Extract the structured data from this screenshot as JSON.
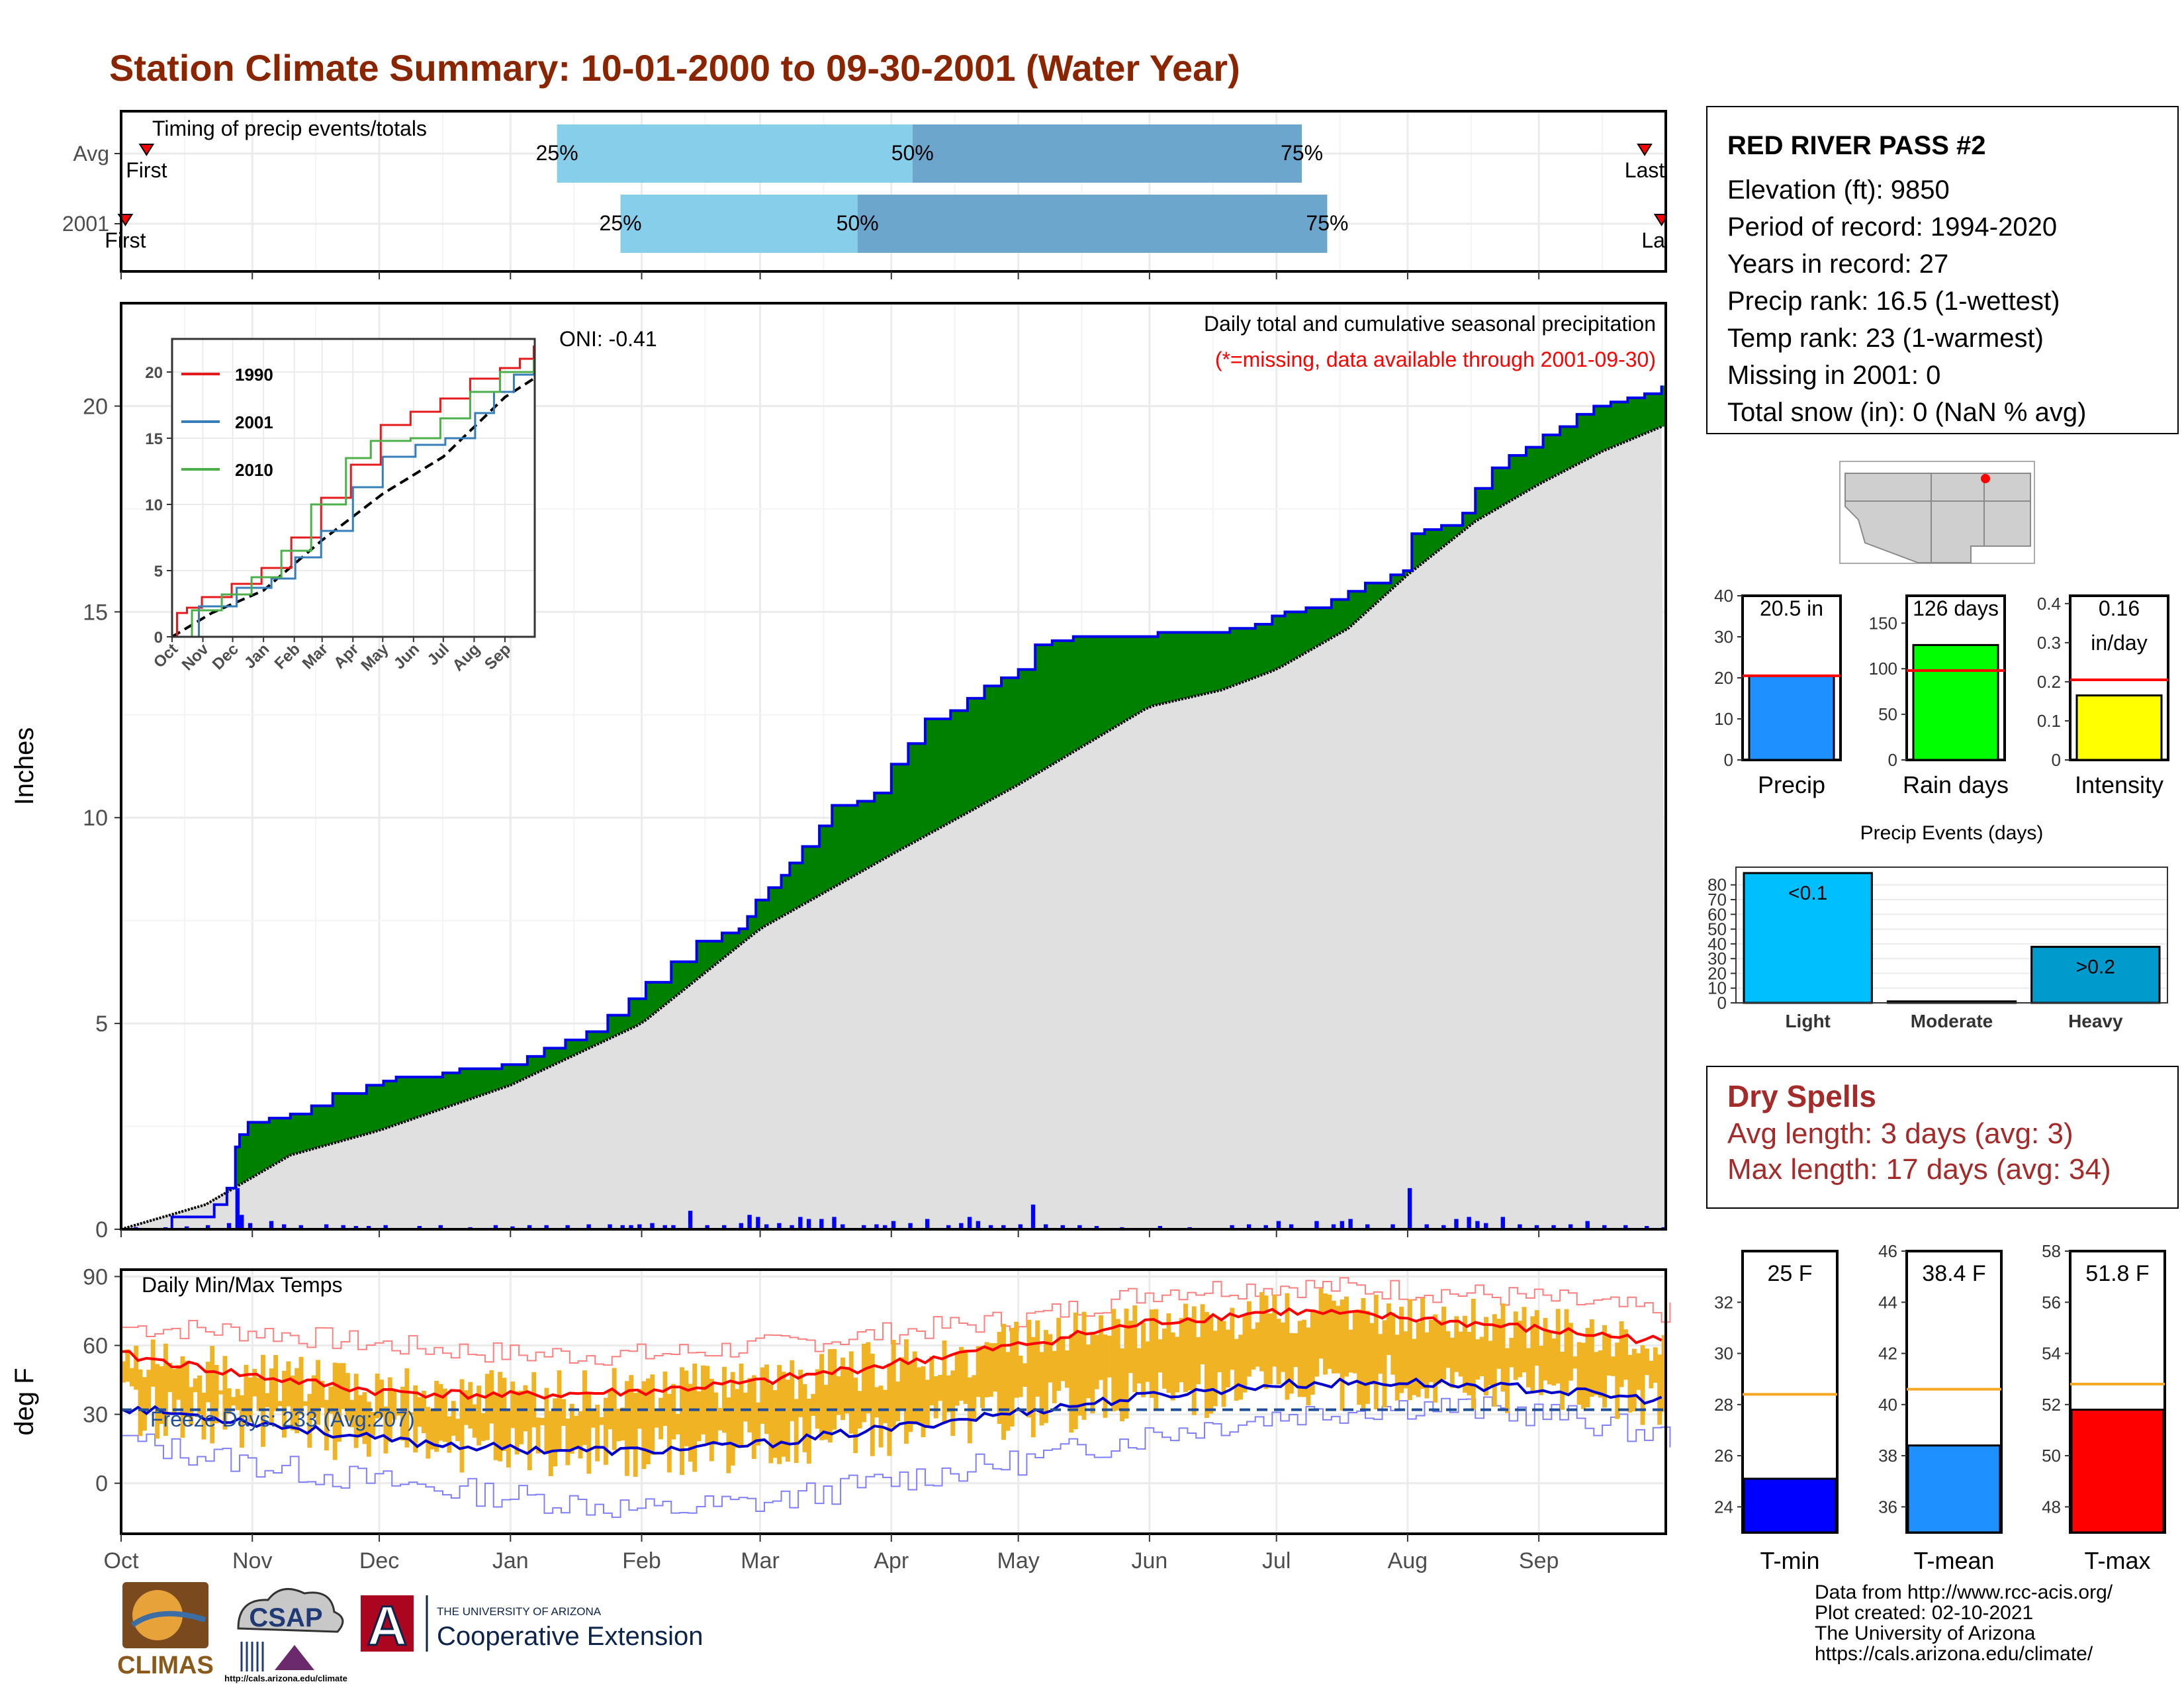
{
  "title": "Station Climate Summary: 10-01-2000 to 09-30-2001 (Water Year)",
  "colors": {
    "title": "#8b2500",
    "q_light": "#87ceeb",
    "q_dark": "#6ca6cd",
    "marker": "#ff0000",
    "green_fill": "#008000",
    "brown_fill": "#8b5a1a",
    "grey_fill": "#e0e0e0",
    "daily_bars": "#0000ff",
    "temp_bars": "#f0b323",
    "tmax_avg": "#ff0000",
    "tmin_avg": "#0000cc"
  },
  "timing": {
    "title": "Timing of precip events/totals",
    "rows": [
      {
        "label": "Avg",
        "first_label": "First",
        "last_label": "Last",
        "first_day": 6,
        "last_day": 360,
        "q25": 103,
        "q50": 187,
        "q75": 279
      },
      {
        "label": "2001",
        "first_label": "First",
        "last_label": "Last",
        "first_day": 1,
        "last_day": 364,
        "q25": 118,
        "q50": 174,
        "q75": 285
      }
    ],
    "q_labels": [
      "25%",
      "50%",
      "75%"
    ]
  },
  "main_chart": {
    "ylabel": "Inches",
    "yticks": [
      0,
      5,
      10,
      15,
      20
    ],
    "ylim": [
      0,
      22.5
    ],
    "oni": "ONI: -0.41",
    "caption": "Daily total and cumulative seasonal precipitation",
    "missing_note": "(*=missing, data available through 2001-09-30)",
    "months": [
      "Oct",
      "Nov",
      "Dec",
      "Jan",
      "Feb",
      "Mar",
      "Apr",
      "May",
      "Jun",
      "Jul",
      "Aug",
      "Sep"
    ],
    "month_starts": [
      0,
      31,
      61,
      92,
      123,
      151,
      182,
      212,
      243,
      273,
      304,
      335
    ],
    "days_total": 365,
    "cum_2001": [
      [
        0,
        0
      ],
      [
        12,
        0.3
      ],
      [
        22,
        0.6
      ],
      [
        25,
        1.0
      ],
      [
        27,
        2.0
      ],
      [
        28,
        2.3
      ],
      [
        30,
        2.6
      ],
      [
        35,
        2.7
      ],
      [
        40,
        2.8
      ],
      [
        45,
        3.0
      ],
      [
        50,
        3.3
      ],
      [
        58,
        3.5
      ],
      [
        62,
        3.6
      ],
      [
        65,
        3.7
      ],
      [
        72,
        3.7
      ],
      [
        76,
        3.8
      ],
      [
        80,
        3.9
      ],
      [
        85,
        3.9
      ],
      [
        90,
        4.0
      ],
      [
        96,
        4.2
      ],
      [
        100,
        4.4
      ],
      [
        105,
        4.6
      ],
      [
        110,
        4.8
      ],
      [
        115,
        5.2
      ],
      [
        120,
        5.6
      ],
      [
        124,
        6.0
      ],
      [
        130,
        6.5
      ],
      [
        136,
        7.0
      ],
      [
        142,
        7.2
      ],
      [
        146,
        7.3
      ],
      [
        148,
        7.6
      ],
      [
        150,
        8.0
      ],
      [
        153,
        8.3
      ],
      [
        156,
        8.6
      ],
      [
        158,
        8.9
      ],
      [
        161,
        9.3
      ],
      [
        165,
        9.8
      ],
      [
        168,
        10.3
      ],
      [
        174,
        10.4
      ],
      [
        178,
        10.6
      ],
      [
        182,
        11.3
      ],
      [
        186,
        11.8
      ],
      [
        190,
        12.4
      ],
      [
        196,
        12.6
      ],
      [
        200,
        12.9
      ],
      [
        204,
        13.2
      ],
      [
        208,
        13.4
      ],
      [
        212,
        13.6
      ],
      [
        216,
        14.2
      ],
      [
        220,
        14.3
      ],
      [
        225,
        14.4
      ],
      [
        240,
        14.4
      ],
      [
        245,
        14.5
      ],
      [
        250,
        14.5
      ],
      [
        262,
        14.6
      ],
      [
        268,
        14.7
      ],
      [
        272,
        14.9
      ],
      [
        275,
        15.0
      ],
      [
        280,
        15.1
      ],
      [
        286,
        15.3
      ],
      [
        290,
        15.5
      ],
      [
        294,
        15.7
      ],
      [
        300,
        15.9
      ],
      [
        303,
        16.0
      ],
      [
        305,
        16.9
      ],
      [
        308,
        17.0
      ],
      [
        312,
        17.1
      ],
      [
        317,
        17.4
      ],
      [
        320,
        18.0
      ],
      [
        324,
        18.5
      ],
      [
        328,
        18.8
      ],
      [
        332,
        19.0
      ],
      [
        336,
        19.3
      ],
      [
        340,
        19.5
      ],
      [
        344,
        19.8
      ],
      [
        348,
        20.0
      ],
      [
        352,
        20.1
      ],
      [
        356,
        20.2
      ],
      [
        360,
        20.3
      ],
      [
        364,
        20.5
      ]
    ],
    "cum_avg": [
      [
        0,
        0
      ],
      [
        20,
        0.6
      ],
      [
        40,
        1.8
      ],
      [
        61,
        2.4
      ],
      [
        92,
        3.5
      ],
      [
        123,
        5.0
      ],
      [
        151,
        7.3
      ],
      [
        182,
        9.1
      ],
      [
        212,
        10.8
      ],
      [
        243,
        12.7
      ],
      [
        260,
        13.1
      ],
      [
        273,
        13.6
      ],
      [
        290,
        14.6
      ],
      [
        304,
        15.9
      ],
      [
        320,
        17.2
      ],
      [
        335,
        18.1
      ],
      [
        350,
        18.9
      ],
      [
        364,
        19.5
      ]
    ],
    "daily": [
      [
        3,
        0.05
      ],
      [
        10,
        0.05
      ],
      [
        15,
        0.07
      ],
      [
        20,
        0.1
      ],
      [
        25,
        0.15
      ],
      [
        27,
        1.0
      ],
      [
        28,
        0.35
      ],
      [
        30,
        0.15
      ],
      [
        35,
        0.2
      ],
      [
        38,
        0.12
      ],
      [
        42,
        0.1
      ],
      [
        48,
        0.12
      ],
      [
        52,
        0.1
      ],
      [
        55,
        0.08
      ],
      [
        58,
        0.08
      ],
      [
        62,
        0.1
      ],
      [
        70,
        0.08
      ],
      [
        75,
        0.1
      ],
      [
        82,
        0.05
      ],
      [
        88,
        0.1
      ],
      [
        92,
        0.07
      ],
      [
        96,
        0.1
      ],
      [
        100,
        0.1
      ],
      [
        105,
        0.1
      ],
      [
        110,
        0.12
      ],
      [
        115,
        0.12
      ],
      [
        118,
        0.1
      ],
      [
        120,
        0.1
      ],
      [
        122,
        0.12
      ],
      [
        125,
        0.15
      ],
      [
        128,
        0.1
      ],
      [
        130,
        0.1
      ],
      [
        134,
        0.45
      ],
      [
        138,
        0.1
      ],
      [
        142,
        0.1
      ],
      [
        146,
        0.15
      ],
      [
        148,
        0.35
      ],
      [
        150,
        0.3
      ],
      [
        152,
        0.12
      ],
      [
        155,
        0.15
      ],
      [
        158,
        0.1
      ],
      [
        160,
        0.3
      ],
      [
        162,
        0.25
      ],
      [
        165,
        0.25
      ],
      [
        168,
        0.3
      ],
      [
        170,
        0.12
      ],
      [
        175,
        0.1
      ],
      [
        178,
        0.12
      ],
      [
        180,
        0.1
      ],
      [
        182,
        0.2
      ],
      [
        186,
        0.15
      ],
      [
        190,
        0.25
      ],
      [
        195,
        0.1
      ],
      [
        198,
        0.15
      ],
      [
        200,
        0.3
      ],
      [
        202,
        0.2
      ],
      [
        205,
        0.1
      ],
      [
        208,
        0.1
      ],
      [
        212,
        0.12
      ],
      [
        215,
        0.6
      ],
      [
        218,
        0.12
      ],
      [
        222,
        0.1
      ],
      [
        226,
        0.1
      ],
      [
        230,
        0.08
      ],
      [
        236,
        0.05
      ],
      [
        245,
        0.08
      ],
      [
        252,
        0.05
      ],
      [
        262,
        0.1
      ],
      [
        266,
        0.12
      ],
      [
        270,
        0.1
      ],
      [
        273,
        0.2
      ],
      [
        276,
        0.12
      ],
      [
        282,
        0.2
      ],
      [
        286,
        0.12
      ],
      [
        288,
        0.2
      ],
      [
        290,
        0.25
      ],
      [
        294,
        0.12
      ],
      [
        300,
        0.12
      ],
      [
        304,
        1.0
      ],
      [
        308,
        0.12
      ],
      [
        312,
        0.1
      ],
      [
        315,
        0.25
      ],
      [
        318,
        0.3
      ],
      [
        320,
        0.2
      ],
      [
        322,
        0.15
      ],
      [
        326,
        0.3
      ],
      [
        330,
        0.12
      ],
      [
        334,
        0.1
      ],
      [
        338,
        0.1
      ],
      [
        342,
        0.12
      ],
      [
        346,
        0.2
      ],
      [
        350,
        0.1
      ],
      [
        355,
        0.1
      ],
      [
        360,
        0.08
      ],
      [
        364,
        0.05
      ]
    ]
  },
  "inset": {
    "yticks": [
      0,
      5,
      10,
      15,
      20
    ],
    "months": [
      "Oct",
      "Nov",
      "Dec",
      "Jan",
      "Feb",
      "Mar",
      "Apr",
      "May",
      "Jun",
      "Jul",
      "Aug",
      "Sep"
    ],
    "series": [
      {
        "name": "1990",
        "color": "#e41a1c",
        "points": [
          [
            0,
            0
          ],
          [
            5,
            1.8
          ],
          [
            15,
            2.2
          ],
          [
            30,
            3.0
          ],
          [
            60,
            4.0
          ],
          [
            90,
            5.2
          ],
          [
            120,
            7.5
          ],
          [
            150,
            10.5
          ],
          [
            180,
            13.0
          ],
          [
            210,
            16.0
          ],
          [
            240,
            17.0
          ],
          [
            270,
            18.0
          ],
          [
            300,
            19.5
          ],
          [
            330,
            20.3
          ],
          [
            350,
            21.0
          ],
          [
            364,
            22.0
          ]
        ]
      },
      {
        "name": "2001",
        "color": "#377eb8",
        "points": [
          [
            0,
            0
          ],
          [
            27,
            2.3
          ],
          [
            65,
            3.7
          ],
          [
            100,
            4.4
          ],
          [
            124,
            6.0
          ],
          [
            150,
            8.0
          ],
          [
            182,
            11.3
          ],
          [
            212,
            13.6
          ],
          [
            245,
            14.5
          ],
          [
            275,
            15.0
          ],
          [
            305,
            16.9
          ],
          [
            324,
            18.5
          ],
          [
            344,
            19.8
          ],
          [
            364,
            20.5
          ]
        ]
      },
      {
        "name": "2010",
        "color": "#4daf4a",
        "points": [
          [
            0,
            0
          ],
          [
            20,
            2.0
          ],
          [
            50,
            3.2
          ],
          [
            80,
            4.5
          ],
          [
            110,
            6.5
          ],
          [
            140,
            10.0
          ],
          [
            175,
            13.5
          ],
          [
            200,
            14.8
          ],
          [
            240,
            15.0
          ],
          [
            270,
            16.5
          ],
          [
            300,
            18.5
          ],
          [
            330,
            20.0
          ],
          [
            364,
            21.0
          ]
        ]
      }
    ],
    "avg_points": [
      [
        0,
        0
      ],
      [
        40,
        1.8
      ],
      [
        92,
        3.5
      ],
      [
        151,
        7.3
      ],
      [
        212,
        10.8
      ],
      [
        273,
        13.6
      ],
      [
        335,
        18.1
      ],
      [
        364,
        19.5
      ]
    ]
  },
  "temp_chart": {
    "ylabel": "deg F",
    "title": "Daily Min/Max Temps",
    "freeze_label": "Freeze Days: 233 (Avg:207)",
    "yticks": [
      0,
      30,
      60,
      90
    ],
    "ylim": [
      -22,
      93
    ],
    "freeze_line": 32,
    "tmax_avg": [
      [
        0,
        56
      ],
      [
        30,
        47
      ],
      [
        61,
        40
      ],
      [
        92,
        38
      ],
      [
        123,
        40
      ],
      [
        151,
        44
      ],
      [
        182,
        52
      ],
      [
        212,
        60
      ],
      [
        243,
        70
      ],
      [
        273,
        75
      ],
      [
        304,
        72
      ],
      [
        335,
        67
      ],
      [
        364,
        62
      ]
    ],
    "tmin_avg": [
      [
        0,
        33
      ],
      [
        30,
        27
      ],
      [
        61,
        19
      ],
      [
        92,
        15
      ],
      [
        123,
        14
      ],
      [
        151,
        17
      ],
      [
        182,
        24
      ],
      [
        212,
        31
      ],
      [
        243,
        38
      ],
      [
        273,
        43
      ],
      [
        304,
        44
      ],
      [
        335,
        41
      ],
      [
        364,
        36
      ]
    ],
    "rec_high": [
      [
        0,
        68
      ],
      [
        30,
        66
      ],
      [
        61,
        60
      ],
      [
        92,
        56
      ],
      [
        123,
        56
      ],
      [
        151,
        60
      ],
      [
        182,
        66
      ],
      [
        212,
        72
      ],
      [
        243,
        84
      ],
      [
        273,
        86
      ],
      [
        304,
        84
      ],
      [
        335,
        80
      ],
      [
        364,
        74
      ]
    ],
    "rec_low": [
      [
        0,
        18
      ],
      [
        30,
        8
      ],
      [
        61,
        0
      ],
      [
        92,
        -6
      ],
      [
        123,
        -12
      ],
      [
        151,
        -8
      ],
      [
        182,
        2
      ],
      [
        212,
        10
      ],
      [
        243,
        22
      ],
      [
        273,
        30
      ],
      [
        304,
        34
      ],
      [
        335,
        30
      ],
      [
        364,
        20
      ]
    ]
  },
  "station": {
    "name": "RED RIVER PASS #2",
    "lines": [
      "Elevation (ft): 9850",
      "Period of record: 1994-2020",
      "Years in record: 27",
      "Precip rank: 16.5 (1-wettest)",
      "Temp rank: 23 (1-warmest)",
      "Missing in 2001: 0",
      "Total snow (in): 0 (NaN % avg)"
    ]
  },
  "mini_bars": [
    {
      "label": "Precip",
      "value_text": "20.5 in",
      "value": 20.5,
      "avg": 20.5,
      "ymax": 40,
      "yticks": [
        0,
        10,
        20,
        30,
        40
      ],
      "color": "#1e90ff"
    },
    {
      "label": "Rain days",
      "value_text": "126 days",
      "value": 126,
      "avg": 98,
      "ymax": 180,
      "yticks": [
        0,
        50,
        100,
        150
      ],
      "color": "#00ff00"
    },
    {
      "label": "Intensity",
      "value_text": "0.16",
      "value_text2": "in/day",
      "value": 0.165,
      "avg": 0.205,
      "ymax": 0.42,
      "yticks": [
        0.0,
        0.1,
        0.2,
        0.3,
        0.4
      ],
      "color": "#ffff00"
    }
  ],
  "events": {
    "title": "Precip Events (days)",
    "categories": [
      "Light",
      "Moderate",
      "Heavy"
    ],
    "values": [
      88,
      1,
      38
    ],
    "labels": [
      "<0.1",
      "",
      ">0.2"
    ],
    "colors": [
      "#00bfff",
      "#00bfff",
      "#009acd"
    ],
    "yticks": [
      0,
      10,
      20,
      30,
      40,
      50,
      60,
      70,
      80
    ],
    "ymax": 92
  },
  "dry_spells": {
    "title": "Dry Spells",
    "avg": "Avg length: 3 days (avg: 3)",
    "max": "Max length: 17 days (avg: 34)"
  },
  "temp_bars": [
    {
      "label": "T-min",
      "value_text": "25 F",
      "value": 25.1,
      "avg": 28.4,
      "ymin": 23,
      "ymax": 34,
      "yticks": [
        24,
        26,
        28,
        30,
        32
      ],
      "color": "#0000ff"
    },
    {
      "label": "T-mean",
      "value_text": "38.4 F",
      "value": 38.4,
      "avg": 40.6,
      "ymin": 35,
      "ymax": 46,
      "yticks": [
        36,
        38,
        40,
        42,
        44,
        46
      ],
      "color": "#1e90ff"
    },
    {
      "label": "T-max",
      "value_text": "51.8 F",
      "value": 51.8,
      "avg": 52.8,
      "ymin": 47,
      "ymax": 58,
      "yticks": [
        48,
        50,
        52,
        54,
        56,
        58
      ],
      "color": "#ff0000"
    }
  ],
  "logos": {
    "climas": "CLIMAS",
    "csap": "CSAP",
    "csap_url": "http://cals.arizona.edu/climate",
    "ua_small": "THE UNIVERSITY OF ARIZONA",
    "ua_big": "Cooperative Extension",
    "ua_mark": "A"
  },
  "credits": [
    "Data from http://www.rcc-acis.org/",
    "Plot created: 02-10-2021",
    "The University of Arizona",
    "https://cals.arizona.edu/climate/"
  ]
}
